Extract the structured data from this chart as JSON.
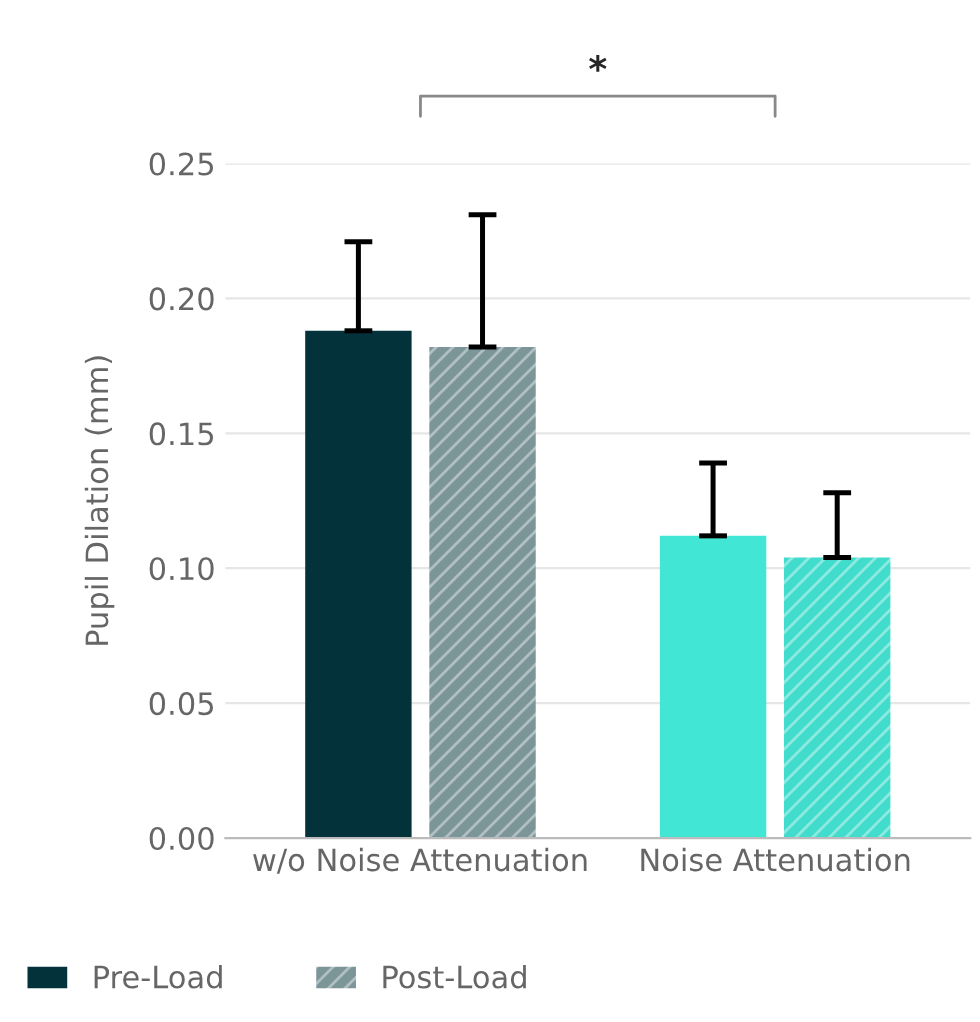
{
  "chart_data": {
    "type": "bar",
    "ylabel": "Pupil Dilation (mm)",
    "categories": [
      "w/o Noise Attenuation",
      "Noise Attenuation"
    ],
    "series": [
      {
        "name": "Pre-Load",
        "colors": [
          "#03323a",
          "#41e6d4"
        ],
        "values": [
          0.188,
          0.112
        ],
        "errors": [
          [
            0.188,
            0.221
          ],
          [
            0.112,
            0.139
          ]
        ]
      },
      {
        "name": "Post-Load",
        "colors": [
          "#7b9599",
          "#41dccb"
        ],
        "values": [
          0.182,
          0.104
        ],
        "errors": [
          [
            0.182,
            0.231
          ],
          [
            0.104,
            0.128
          ]
        ]
      }
    ],
    "ylim": [
      0,
      0.25
    ],
    "yticks": [
      {
        "value": 0,
        "label": "0.00"
      },
      0.05,
      {
        "value": 0.1,
        "label": "0.10"
      },
      0.15,
      {
        "value": 0.2,
        "label": "0.20"
      },
      0.25
    ],
    "grid": "y",
    "legend": "bottom left",
    "annotations": [
      "*"
    ]
  }
}
